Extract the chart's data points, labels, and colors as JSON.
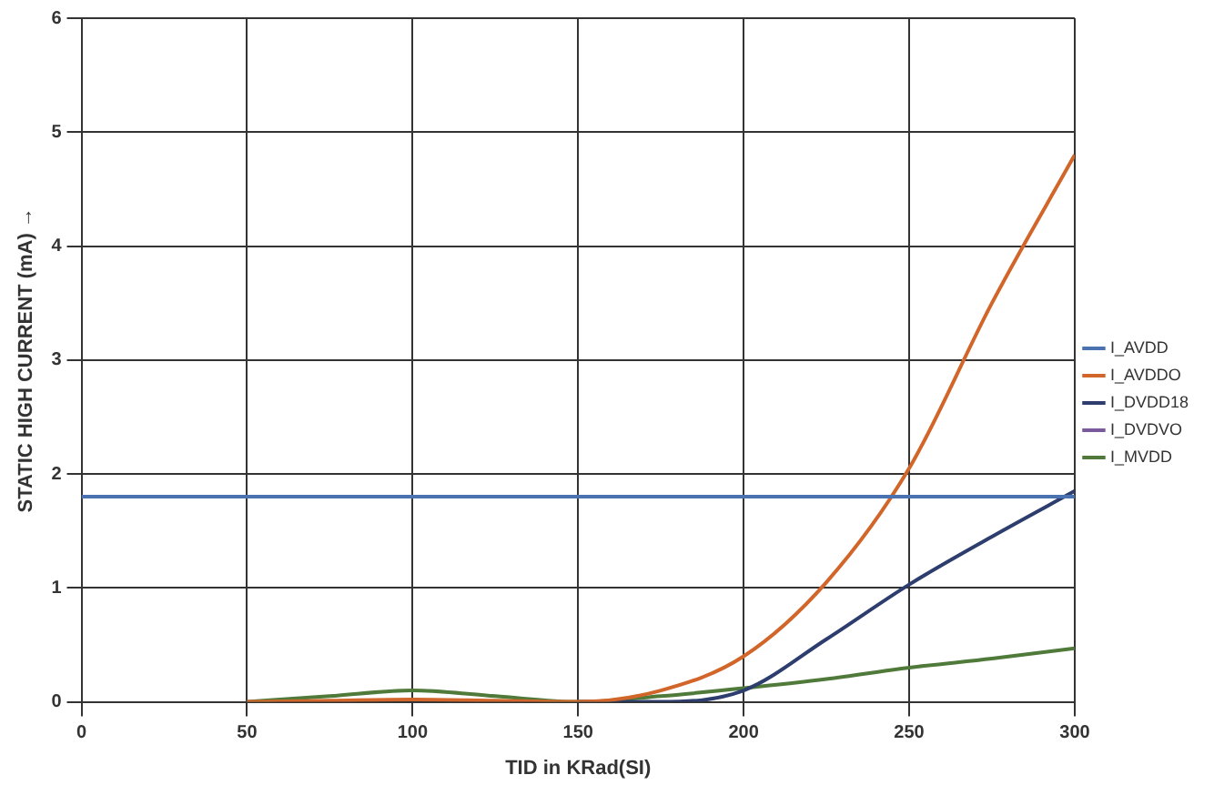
{
  "chart_data": {
    "type": "line",
    "xlabel": "TID in KRad(SI)",
    "ylabel": "STATIC HIGH CURRENT (mA) →",
    "x": [
      0,
      50,
      75,
      100,
      125,
      150,
      175,
      200,
      225,
      250,
      275,
      300
    ],
    "xlim": [
      0,
      300
    ],
    "xticks": [
      0,
      50,
      100,
      150,
      200,
      250,
      300
    ],
    "ylim": [
      0,
      6
    ],
    "yticks": [
      0,
      1,
      2,
      3,
      4,
      5,
      6
    ],
    "grid": true,
    "legend": "right",
    "marker": "none",
    "line_style": "solid",
    "series": [
      {
        "name": "I_AVDD",
        "color": "#4a72b0",
        "values": [
          1.8,
          1.8,
          1.8,
          1.8,
          1.8,
          1.8,
          1.8,
          1.8,
          1.8,
          1.8,
          1.8,
          1.8
        ]
      },
      {
        "name": "I_AVDDO",
        "color": "#d2662a",
        "values": [
          null,
          0,
          0.01,
          0.02,
          0.01,
          0,
          0.1,
          0.4,
          1.05,
          2.05,
          3.5,
          4.8
        ]
      },
      {
        "name": "I_DVDD18",
        "color": "#2c3d6e",
        "values": [
          null,
          null,
          null,
          null,
          null,
          0,
          0,
          0.1,
          0.55,
          1.03,
          1.45,
          1.85
        ]
      },
      {
        "name": "I_DVDVO",
        "color": "#7a5a9a",
        "values": [
          null,
          null,
          null,
          null,
          null,
          null,
          null,
          null,
          null,
          null,
          null,
          null
        ]
      },
      {
        "name": "I_MVDD",
        "color": "#4f7a3a",
        "values": [
          null,
          0,
          0.05,
          0.1,
          0.05,
          0,
          0.05,
          0.12,
          0.2,
          0.3,
          0.38,
          0.47
        ]
      }
    ]
  }
}
